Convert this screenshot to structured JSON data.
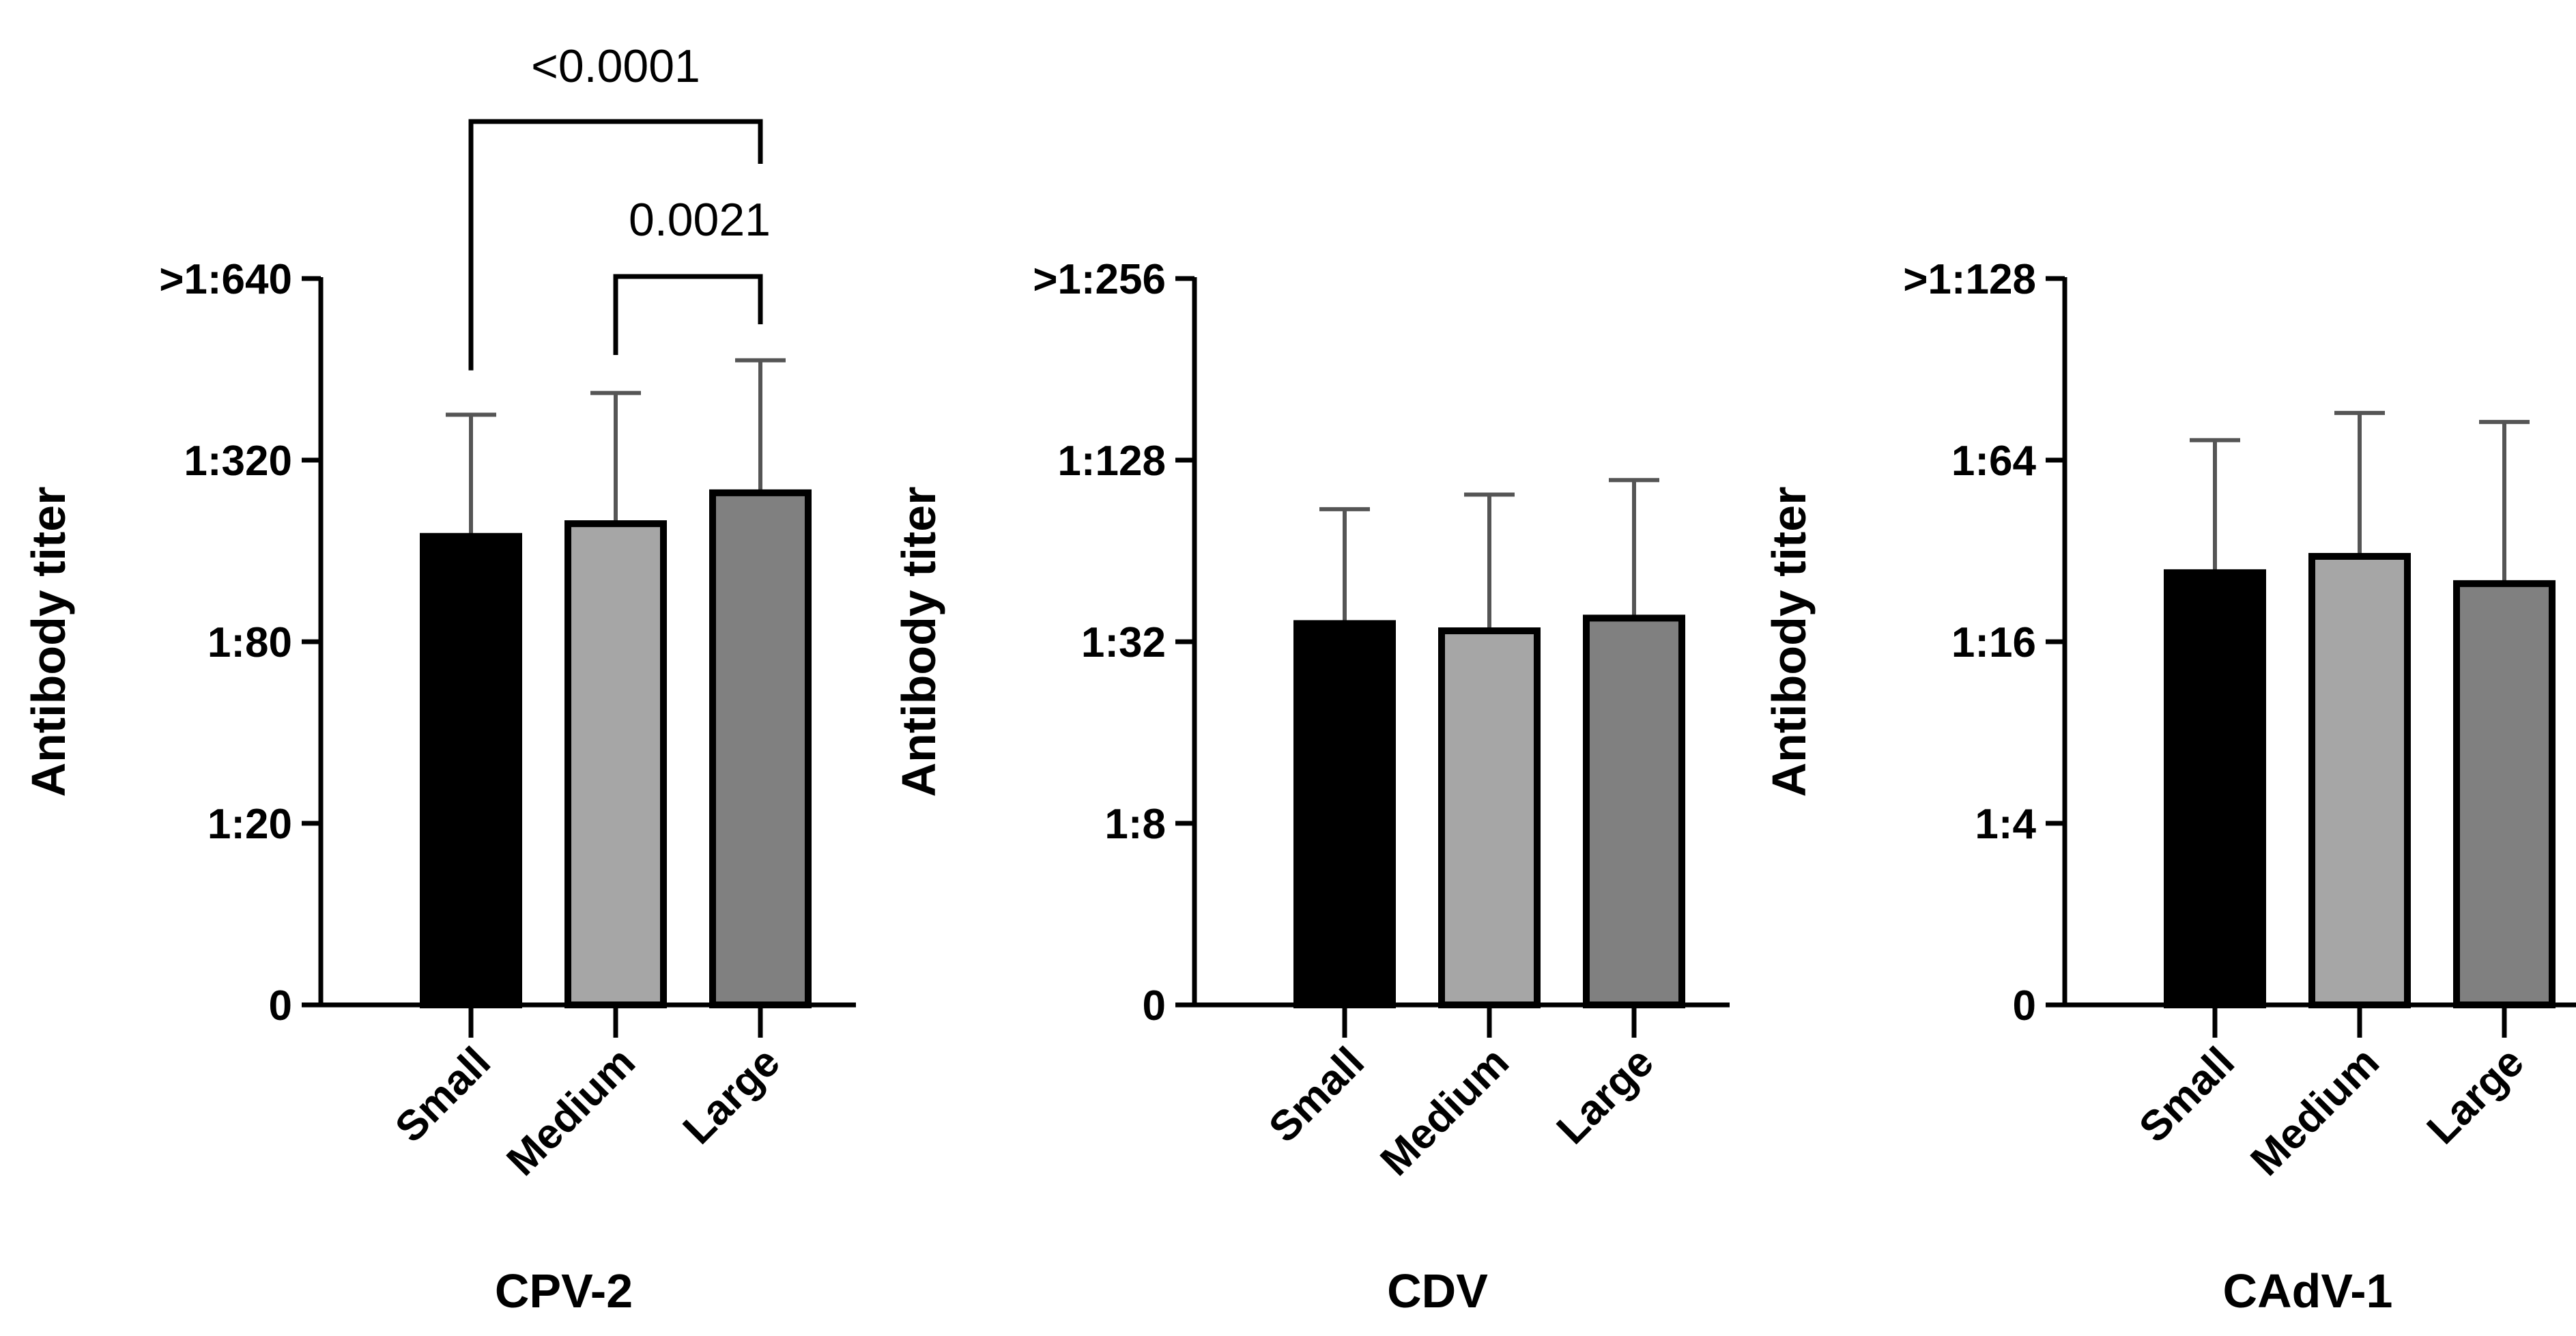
{
  "colors": {
    "Small": "#000000",
    "Medium": "#a6a6a6",
    "Large": "#808080",
    "axis": "#000000",
    "error_bar": "#555555"
  },
  "chart_data": [
    {
      "type": "bar",
      "title": "CPV-2",
      "ylabel": "Antibody titer",
      "xlabel": "CPV-2",
      "categories": [
        "Small",
        "Medium",
        "Large"
      ],
      "yticks": [
        ">1:640",
        "1:320",
        "1:80",
        "1:20",
        "0"
      ],
      "ytick_levels": [
        4,
        3,
        2,
        1,
        0
      ],
      "ylim": [
        0,
        4
      ],
      "values": [
        2.58,
        2.65,
        2.82
      ],
      "error_upper": [
        3.25,
        3.37,
        3.55
      ],
      "annotations": [
        {
          "text": "<0.0001",
          "from": "Small",
          "to": "Large"
        },
        {
          "text": "0.0021",
          "from": "Medium",
          "to": "Large"
        }
      ]
    },
    {
      "type": "bar",
      "title": "CDV",
      "ylabel": "Antibody titer",
      "xlabel": "CDV",
      "categories": [
        "Small",
        "Medium",
        "Large"
      ],
      "yticks": [
        ">1:256",
        "1:128",
        "1:32",
        "1:8",
        "0"
      ],
      "ytick_levels": [
        4,
        3,
        2,
        1,
        0
      ],
      "ylim": [
        0,
        4
      ],
      "values": [
        2.1,
        2.06,
        2.13
      ],
      "error_upper": [
        2.73,
        2.81,
        2.89
      ],
      "annotations": []
    },
    {
      "type": "bar",
      "title": "CAdV-1",
      "ylabel": "Antibody titer",
      "xlabel": "CAdV-1",
      "categories": [
        "Small",
        "Medium",
        "Large"
      ],
      "yticks": [
        ">1:128",
        "1:64",
        "1:16",
        "1:4",
        "0"
      ],
      "ytick_levels": [
        4,
        3,
        2,
        1,
        0
      ],
      "ylim": [
        0,
        4
      ],
      "values": [
        2.38,
        2.47,
        2.32
      ],
      "error_upper": [
        3.11,
        3.26,
        3.21
      ],
      "annotations": []
    }
  ]
}
